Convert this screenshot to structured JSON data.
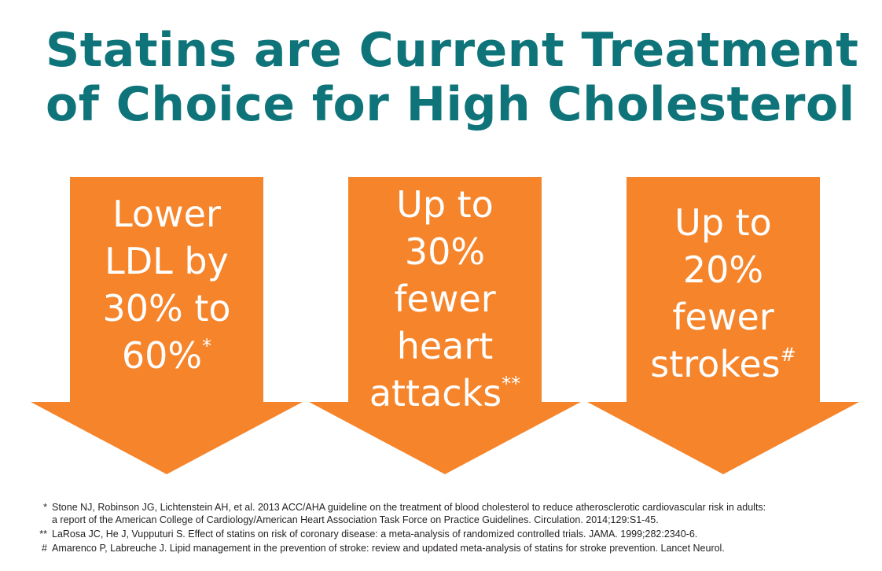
{
  "title": {
    "line1": "Statins are Current Treatment",
    "line2": "of Choice for High Cholesterol"
  },
  "colors": {
    "title": "#0e7479",
    "arrow": "#f5842b",
    "text": "#ffffff"
  },
  "arrows": [
    {
      "lines": [
        "Lower",
        "LDL by",
        "30% to",
        "60%"
      ],
      "mark": "*"
    },
    {
      "lines": [
        "Up to",
        "30%",
        "fewer",
        "heart",
        "attacks"
      ],
      "mark": "**"
    },
    {
      "lines": [
        "Up to",
        "20%",
        "fewer",
        "strokes"
      ],
      "mark": "#"
    }
  ],
  "references": [
    {
      "mark": "*",
      "line1": "Stone NJ, Robinson JG, Lichtenstein AH, et al. 2013 ACC/AHA guideline on the treatment of blood cholesterol to reduce atherosclerotic cardiovascular risk in adults:",
      "line2": "a report of the American College of Cardiology/American Heart Association Task Force on Practice Guidelines. Circulation. 2014;129:S1-45."
    },
    {
      "mark": "**",
      "line1": "LaRosa JC, He J, Vupputuri S. Effect of statins on risk of coronary disease: a meta-analysis of randomized controlled trials. JAMA. 1999;282:2340-6."
    },
    {
      "mark": "#",
      "line1": "Amarenco P, Labreuche J. Lipid management in the prevention of stroke: review and updated meta-analysis of statins for stroke prevention. Lancet Neurol."
    }
  ]
}
